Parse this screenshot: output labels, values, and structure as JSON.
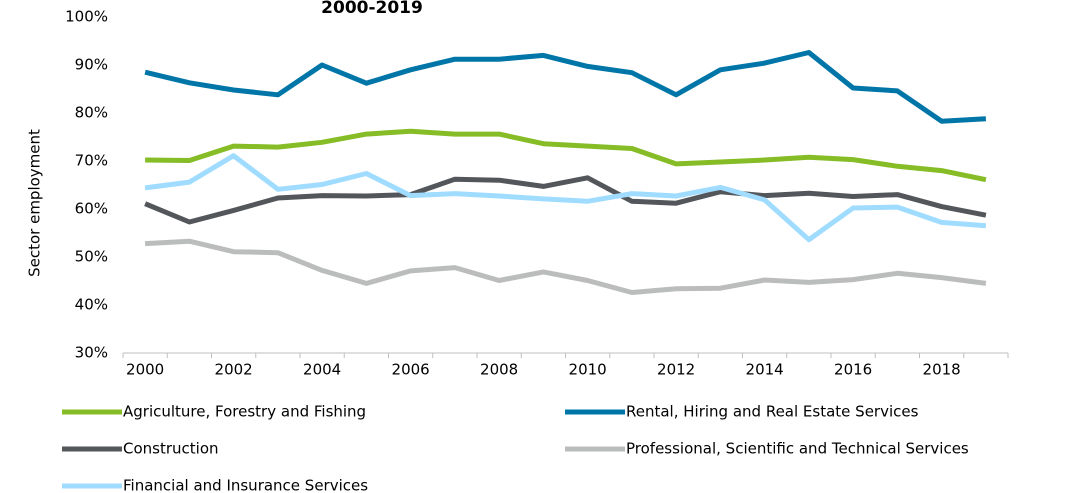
{
  "chart_data": {
    "type": "line",
    "title": "2000-2019",
    "y_label": "Sector employment",
    "categories": [
      "2000",
      null,
      "2002",
      null,
      "2004",
      null,
      "2006",
      null,
      "2008",
      null,
      "2010",
      null,
      "2012",
      null,
      "2014",
      null,
      "2016",
      null,
      "2018",
      null
    ],
    "series": [
      {
        "name": "Agriculture, Forestry and Fishing",
        "color": "#86bc25",
        "values": [
          70.2,
          70.1,
          73.1,
          72.9,
          73.9,
          75.6,
          76.2,
          75.6,
          75.6,
          73.6,
          73.1,
          72.6,
          69.4,
          69.8,
          70.2,
          70.8,
          70.3,
          68.9,
          68.0,
          66.1
        ]
      },
      {
        "name": "Rental, Hiring and Real Estate Services",
        "color": "#0076a8",
        "values": [
          88.5,
          86.3,
          84.8,
          83.8,
          90.0,
          86.2,
          89.0,
          91.2,
          91.2,
          92.0,
          89.7,
          88.4,
          83.8,
          89.0,
          90.4,
          92.6,
          85.2,
          84.6,
          78.3,
          78.8
        ]
      },
      {
        "name": "Construction",
        "color": "#53565a",
        "values": [
          61.1,
          57.3,
          59.7,
          62.3,
          62.8,
          62.7,
          63.0,
          66.2,
          66.0,
          64.7,
          66.5,
          61.6,
          61.2,
          63.6,
          62.8,
          63.3,
          62.6,
          63.0,
          60.5,
          58.7
        ]
      },
      {
        "name": "Professional, Scientific and Technical Services",
        "color": "#bbbcbc",
        "values": [
          52.8,
          53.3,
          51.1,
          50.9,
          47.2,
          44.5,
          47.1,
          47.8,
          45.1,
          46.9,
          45.1,
          42.6,
          43.4,
          43.5,
          45.2,
          44.7,
          45.3,
          46.6,
          45.7,
          44.5
        ]
      },
      {
        "name": "Financial and Insurance Services",
        "color": "#a0dcff",
        "values": [
          64.4,
          65.6,
          71.1,
          64.1,
          65.1,
          67.4,
          62.8,
          63.2,
          62.7,
          62.1,
          61.6,
          63.2,
          62.7,
          64.5,
          61.9,
          53.6,
          60.2,
          60.4,
          57.2,
          56.5
        ]
      }
    ],
    "ylim": [
      30,
      100
    ],
    "yticks": [
      {
        "value": 30,
        "label": "30%"
      },
      {
        "value": 40,
        "label": "40%"
      },
      {
        "value": 50,
        "label": "50%"
      },
      {
        "value": 60,
        "label": "60%"
      },
      {
        "value": 70,
        "label": "70%"
      },
      {
        "value": 80,
        "label": "80%"
      },
      {
        "value": 90,
        "label": "90%"
      },
      {
        "value": 100,
        "label": "100%"
      }
    ],
    "grid": false,
    "legend": "bottom"
  }
}
